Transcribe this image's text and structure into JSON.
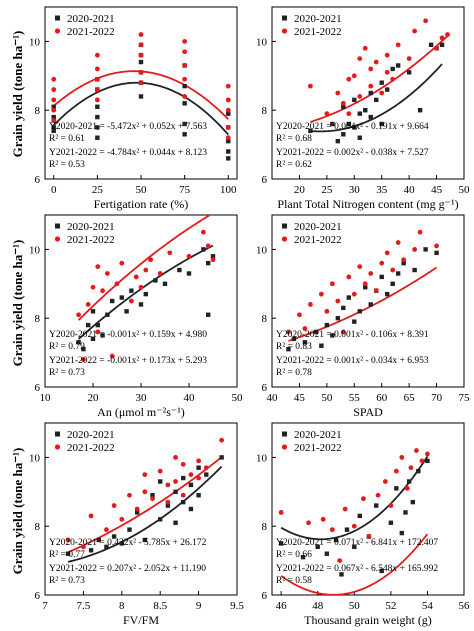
{
  "figure": {
    "y_axis_label": "Grain yield (tone ha⁻¹)",
    "colors": {
      "series_2020_2021": "#222222",
      "series_2021_2022": "#e41a1c",
      "axis": "#000000"
    }
  },
  "chart_data": [
    {
      "type": "scatter",
      "panel": "fertigation",
      "xlabel": "Fertigation rate (%)",
      "ylabel": "Grain yield (tone ha⁻¹)",
      "xlim": [
        -5,
        105
      ],
      "ylim": [
        6,
        11
      ],
      "xticks": [
        0,
        25,
        50,
        75,
        100
      ],
      "yticks": [
        6,
        8,
        10
      ],
      "legend": "top-left",
      "series": [
        {
          "name": "2020-2021",
          "marker": "square",
          "x": [
            0,
            0,
            0,
            0,
            0,
            25,
            25,
            25,
            25,
            25,
            25,
            50,
            50,
            50,
            50,
            50,
            50,
            75,
            75,
            75,
            75,
            75,
            100,
            100,
            100,
            100,
            100
          ],
          "y": [
            7.4,
            7.5,
            7.7,
            7.8,
            8.1,
            7.2,
            7.5,
            7.8,
            8.1,
            8.6,
            8.9,
            8.4,
            8.8,
            9.1,
            9.4,
            9.6,
            9.9,
            7.3,
            7.6,
            8.2,
            8.7,
            9.3,
            6.6,
            6.8,
            7.1,
            7.5,
            7.9
          ],
          "fit": {
            "a": -0.0005472,
            "b": 0.052,
            "c": 7.563
          },
          "equation": "Y2020-2021 = -5.472x² + 0.052x + 7.563",
          "r2": "R² = 0.61"
        },
        {
          "name": "2021-2022",
          "marker": "circle",
          "x": [
            0,
            0,
            0,
            0,
            0,
            25,
            25,
            25,
            25,
            25,
            50,
            50,
            50,
            50,
            50,
            75,
            75,
            75,
            75,
            75,
            100,
            100,
            100,
            100,
            100
          ],
          "y": [
            7.7,
            8.0,
            8.3,
            8.6,
            8.9,
            8.3,
            8.6,
            8.9,
            9.2,
            9.6,
            8.8,
            9.1,
            9.6,
            9.9,
            10.2,
            8.4,
            8.9,
            9.3,
            9.7,
            10.0,
            7.2,
            7.5,
            8.0,
            8.3,
            8.7
          ],
          "fit": {
            "a": -0.0004784,
            "b": 0.044,
            "c": 8.123
          },
          "equation": "Y2021-2022 = -4.784x² + 0.044x + 8.123",
          "r2": "R² = 0.53"
        }
      ]
    },
    {
      "type": "scatter",
      "panel": "nitrogen",
      "xlabel": "Plant Total Nitrogen content (mg g⁻¹)",
      "ylabel": "",
      "xlim": [
        15,
        50
      ],
      "ylim": [
        6,
        11
      ],
      "xticks": [
        20,
        25,
        30,
        35,
        40,
        45,
        50
      ],
      "yticks": [
        6,
        8,
        10
      ],
      "legend": "top-left",
      "series": [
        {
          "name": "2020-2021",
          "marker": "square",
          "x": [
            22,
            26,
            27,
            28,
            28,
            29,
            30,
            30,
            31,
            31,
            32,
            33,
            33,
            34,
            35,
            35,
            36,
            37,
            38,
            40,
            42,
            44,
            45,
            46
          ],
          "y": [
            7.4,
            7.6,
            7.1,
            7.3,
            8.1,
            7.6,
            7.5,
            8.3,
            7.2,
            7.9,
            8.0,
            8.5,
            7.8,
            8.3,
            7.6,
            8.8,
            8.6,
            9.2,
            9.3,
            9.1,
            8.0,
            9.9,
            9.8,
            9.9
          ],
          "fit": {
            "a": 0.004,
            "b": -0.191,
            "c": 9.664
          },
          "equation": "Y2020-2021 = 0.004x² - 0.191x + 9.664",
          "r2": "R² = 0.68"
        },
        {
          "name": "2021-2022",
          "marker": "circle",
          "x": [
            22,
            25,
            27,
            28,
            29,
            29,
            30,
            31,
            31,
            32,
            33,
            33,
            34,
            35,
            36,
            36,
            37,
            38,
            40,
            41,
            43,
            45,
            46,
            47
          ],
          "y": [
            8.7,
            7.9,
            8.5,
            8.2,
            8.9,
            7.9,
            9.0,
            9.5,
            8.4,
            9.8,
            8.7,
            9.2,
            9.4,
            8.5,
            9.1,
            9.6,
            8.9,
            9.9,
            9.5,
            10.3,
            10.6,
            9.8,
            10.1,
            10.2
          ],
          "fit": {
            "a": 0.002,
            "b": -0.038,
            "c": 7.527
          },
          "equation": "Y2021-2022 = 0.002x² - 0.038x + 7.527",
          "r2": "R² = 0.62"
        }
      ]
    },
    {
      "type": "scatter",
      "panel": "photosynthesis",
      "xlabel": "An (μmol m⁻²s⁻¹)",
      "ylabel": "Grain yield (tone ha⁻¹)",
      "xlim": [
        10,
        50
      ],
      "ylim": [
        6,
        11
      ],
      "xticks": [
        10,
        20,
        30,
        40,
        50
      ],
      "yticks": [
        6,
        8,
        10
      ],
      "legend": "top-left",
      "series": [
        {
          "name": "2020-2021",
          "marker": "square",
          "x": [
            17,
            18,
            19,
            20,
            20,
            21,
            22,
            23,
            24,
            26,
            27,
            28,
            30,
            31,
            33,
            35,
            38,
            40,
            43,
            44,
            44,
            45
          ],
          "y": [
            7.3,
            7.1,
            7.8,
            7.4,
            8.2,
            7.8,
            7.5,
            8.1,
            8.5,
            8.6,
            8.2,
            8.8,
            8.4,
            8.7,
            9.1,
            9.0,
            9.4,
            9.3,
            10.0,
            8.1,
            9.6,
            9.8
          ],
          "fit": {
            "a": -0.001,
            "b": 0.159,
            "c": 4.98
          },
          "equation": "Y2020-2021 = -0.001x² + 0.159x + 4.980",
          "r2": "R² = 0.79"
        },
        {
          "name": "2021-2022",
          "marker": "circle",
          "x": [
            17,
            18,
            19,
            20,
            21,
            21,
            22,
            23,
            24,
            25,
            26,
            28,
            29,
            30,
            31,
            32,
            34,
            36,
            40,
            43,
            44,
            45
          ],
          "y": [
            8.1,
            6.8,
            8.4,
            8.9,
            9.5,
            7.6,
            8.8,
            9.3,
            6.9,
            9.0,
            9.6,
            8.5,
            9.2,
            8.9,
            9.4,
            9.7,
            9.3,
            9.9,
            9.8,
            10.5,
            10.1,
            9.7
          ],
          "fit": {
            "a": -0.001,
            "b": 0.173,
            "c": 5.293
          },
          "equation": "Y2021-2022 = -0.001x² + 0.173x + 5.293",
          "r2": "R² = 0.73"
        }
      ]
    },
    {
      "type": "scatter",
      "panel": "spad",
      "xlabel": "SPAD",
      "ylabel": "",
      "xlim": [
        40,
        75
      ],
      "ylim": [
        6,
        11
      ],
      "xticks": [
        40,
        45,
        50,
        55,
        60,
        65,
        70,
        75
      ],
      "yticks": [
        6,
        8,
        10
      ],
      "legend": "top-left",
      "series": [
        {
          "name": "2020-2021",
          "marker": "square",
          "x": [
            43,
            44,
            46,
            48,
            49,
            50,
            51,
            52,
            53,
            54,
            55,
            56,
            57,
            58,
            59,
            60,
            61,
            62,
            63,
            64,
            66,
            68,
            70
          ],
          "y": [
            7.1,
            7.4,
            7.3,
            7.6,
            7.2,
            7.8,
            7.5,
            8.0,
            8.3,
            8.6,
            7.9,
            8.2,
            8.9,
            8.4,
            8.8,
            9.2,
            8.7,
            9.0,
            9.3,
            9.6,
            9.4,
            10.0,
            9.9
          ],
          "fit": {
            "a": 0.001,
            "b": -0.106,
            "c": 8.391
          },
          "equation": "Y2020-2021 = 0.001x² - 0.106x + 8.391",
          "r2": "R² = 0.83"
        },
        {
          "name": "2021-2022",
          "marker": "circle",
          "x": [
            43,
            45,
            46,
            47,
            49,
            50,
            51,
            52,
            53,
            54,
            55,
            56,
            57,
            58,
            59,
            60,
            61,
            62,
            63,
            64,
            66,
            67,
            70
          ],
          "y": [
            7.6,
            8.1,
            7.7,
            8.4,
            8.7,
            8.2,
            9.0,
            8.5,
            7.6,
            9.2,
            8.7,
            9.5,
            9.0,
            9.3,
            8.8,
            9.6,
            9.9,
            9.4,
            10.2,
            9.7,
            10.0,
            10.5,
            10.1
          ],
          "fit": {
            "a": 0.001,
            "b": -0.034,
            "c": 6.953
          },
          "equation": "Y2021-2022 = 0.001x² - 0.034x + 6.953",
          "r2": "R² = 0.78"
        }
      ]
    },
    {
      "type": "scatter",
      "panel": "fvfm",
      "xlabel": "FV/FM",
      "ylabel": "Grain yield (tone ha⁻¹)",
      "xlim": [
        7.0,
        9.5
      ],
      "ylim": [
        6,
        11
      ],
      "xticks": [
        7.0,
        7.5,
        8.0,
        8.5,
        9.0,
        9.5
      ],
      "yticks": [
        6,
        8,
        10
      ],
      "legend": "top-left",
      "series": [
        {
          "name": "2020-2021",
          "marker": "square",
          "x": [
            7.3,
            7.6,
            7.7,
            7.8,
            7.9,
            8.0,
            8.1,
            8.2,
            8.3,
            8.4,
            8.5,
            8.5,
            8.6,
            8.7,
            8.7,
            8.8,
            8.8,
            8.9,
            8.9,
            9.0,
            9.0,
            9.1,
            9.3
          ],
          "y": [
            7.2,
            7.3,
            7.6,
            7.4,
            7.7,
            7.5,
            7.9,
            8.4,
            7.6,
            8.9,
            8.2,
            9.3,
            8.6,
            9.0,
            8.1,
            9.4,
            8.7,
            9.2,
            8.5,
            9.7,
            8.9,
            9.5,
            10.0
          ],
          "fit": {
            "a": 0.432,
            "b": -5.785,
            "c": 26.172
          },
          "equation": "Y2020-2021 = 0.432x² - 5.785x + 26.172",
          "r2": "R² = 0.77"
        },
        {
          "name": "2021-2022",
          "marker": "circle",
          "x": [
            7.3,
            7.5,
            7.6,
            7.8,
            7.9,
            8.0,
            8.1,
            8.2,
            8.3,
            8.3,
            8.4,
            8.5,
            8.6,
            8.6,
            8.7,
            8.7,
            8.8,
            8.8,
            8.9,
            9.0,
            9.0,
            9.1,
            9.3
          ],
          "y": [
            7.6,
            7.4,
            8.3,
            7.9,
            8.6,
            8.2,
            8.9,
            8.5,
            9.0,
            9.5,
            8.8,
            9.6,
            9.2,
            8.7,
            10.0,
            9.3,
            9.8,
            8.9,
            9.5,
            9.9,
            9.4,
            9.7,
            10.5
          ],
          "fit": {
            "a": 0.207,
            "b": -2.052,
            "c": 11.19
          },
          "equation": "Y2021-2022 = 0.207x² - 2.052x + 11.190",
          "r2": "R² = 0.73"
        }
      ]
    },
    {
      "type": "scatter",
      "panel": "thousand_grain",
      "xlabel": "Thousand grain weight (g)",
      "ylabel": "",
      "xlim": [
        45.5,
        56
      ],
      "ylim": [
        6,
        11
      ],
      "xticks": [
        46,
        48,
        50,
        52,
        54,
        56
      ],
      "yticks": [
        6,
        8,
        10
      ],
      "legend": "top-left",
      "series": [
        {
          "name": "2020-2021",
          "marker": "square",
          "x": [
            46,
            47.2,
            48,
            48.5,
            49,
            49.3,
            49.6,
            50,
            50.3,
            50.8,
            51.2,
            51.5,
            52,
            52.3,
            52.6,
            52.8,
            53,
            53.2,
            53.5,
            54
          ],
          "y": [
            7.5,
            7.1,
            7.4,
            7.2,
            7.6,
            6.6,
            7.9,
            7.4,
            8.3,
            7.7,
            8.6,
            6.7,
            8.1,
            9.1,
            7.8,
            8.4,
            9.3,
            8.7,
            9.6,
            9.9
          ],
          "fit": {
            "a": 0.071,
            "b": -6.841,
            "c": 172.407
          },
          "equation": "Y2020-2021 = 0.071x² - 6.841x + 172.407",
          "r2": "R² = 0.66"
        },
        {
          "name": "2021-2022",
          "marker": "circle",
          "x": [
            46,
            47.5,
            48.3,
            48.8,
            49.2,
            49.5,
            50,
            50.5,
            50.8,
            51.3,
            51.7,
            52,
            52.3,
            52.6,
            52.9,
            53.1,
            53.4,
            53.7,
            54
          ],
          "y": [
            8.4,
            8.1,
            8.2,
            7.9,
            7.0,
            8.5,
            8.0,
            8.8,
            7.7,
            8.9,
            9.3,
            8.6,
            9.6,
            10.0,
            9.1,
            9.7,
            10.2,
            9.9,
            10.1
          ],
          "fit": {
            "a": 0.067,
            "b": -6.548,
            "c": 165.992
          },
          "equation": "Y2021-2022 = 0.067x² - 6.548x + 165.992",
          "r2": "R² = 0.58"
        }
      ]
    }
  ]
}
